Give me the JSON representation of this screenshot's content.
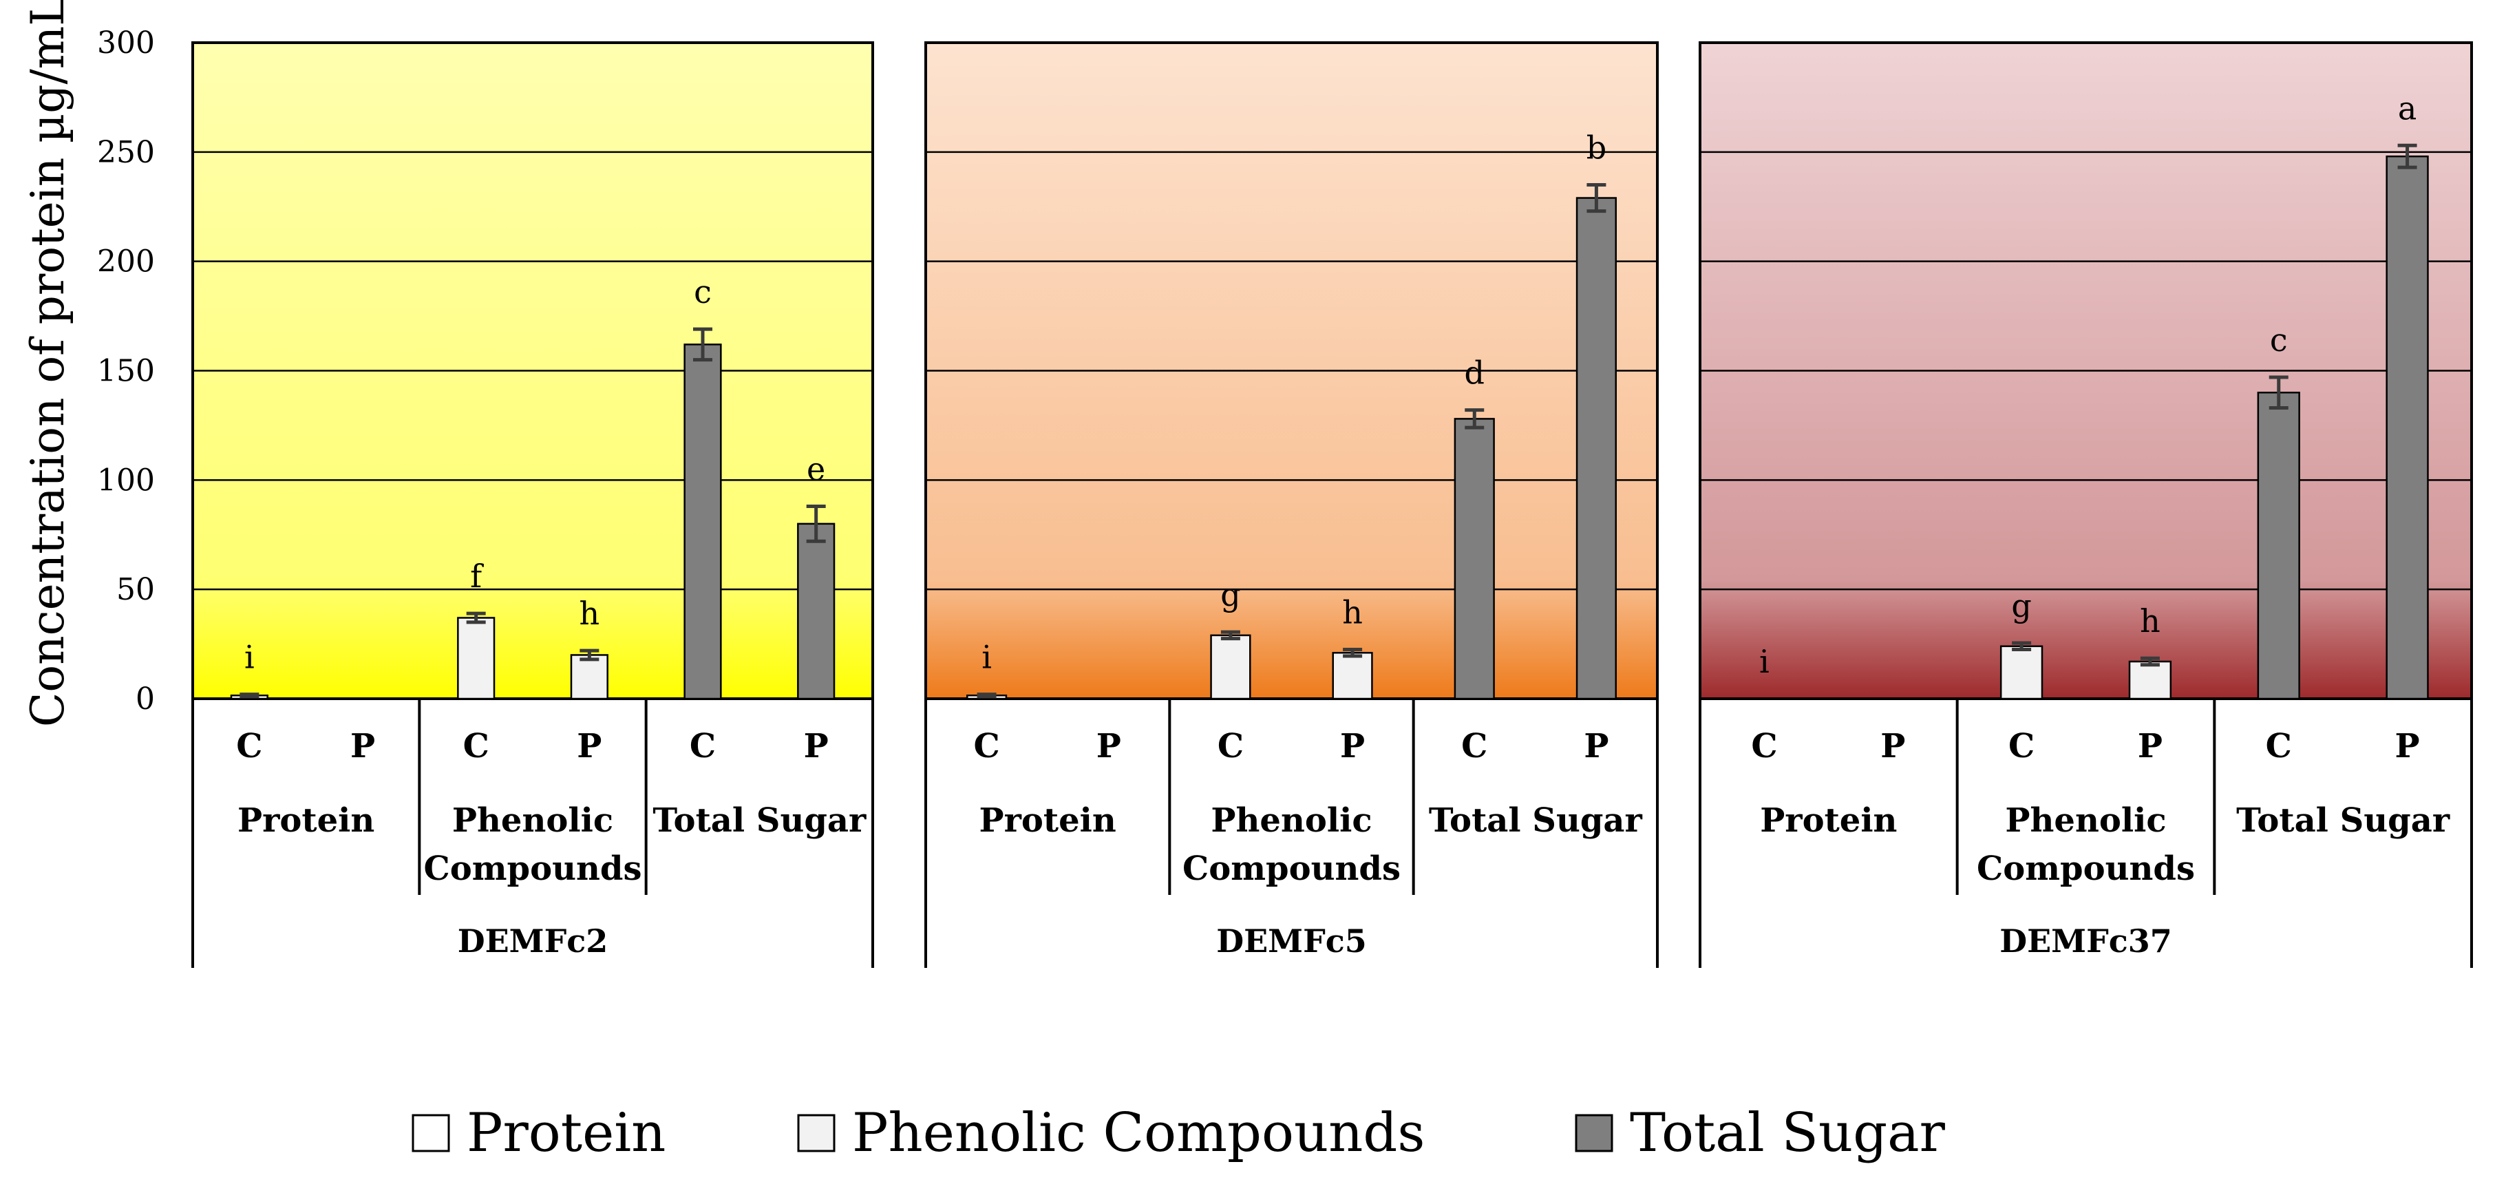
{
  "chart_data": {
    "type": "bar",
    "ylabel": "Concentration of protein µg/mL",
    "ylim": [
      0,
      300
    ],
    "yticks": [
      0,
      50,
      100,
      150,
      200,
      250,
      300
    ],
    "grid": true,
    "legend_position": "bottom",
    "legend": [
      {
        "name": "Protein",
        "color": "#ffffff"
      },
      {
        "name": "Phenolic Compounds",
        "color": "#f2f2f2"
      },
      {
        "name": "Total Sugar",
        "color": "#7f7f7f"
      }
    ],
    "bar_colors": {
      "Protein": "#ffffff",
      "Phenolic Compounds": "#f2f2f2",
      "Total Sugar": "#7f7f7f"
    },
    "panels": [
      {
        "strain": "DEMFc2",
        "bg_top": "#ffffb0",
        "bg_bottom": "#ffff00",
        "groups": [
          {
            "name": "Protein",
            "bars": [
              {
                "cp": "C",
                "value": 1.5,
                "err": 0.5,
                "sig": "i"
              },
              {
                "cp": "P",
                "value": 0,
                "err": 0,
                "sig": ""
              }
            ]
          },
          {
            "name": "Phenolic Compounds",
            "bars": [
              {
                "cp": "C",
                "value": 37,
                "err": 2,
                "sig": "f"
              },
              {
                "cp": "P",
                "value": 20,
                "err": 2,
                "sig": "h"
              }
            ]
          },
          {
            "name": "Total Sugar",
            "bars": [
              {
                "cp": "C",
                "value": 162,
                "err": 7,
                "sig": "c"
              },
              {
                "cp": "P",
                "value": 80,
                "err": 8,
                "sig": "e"
              }
            ]
          }
        ]
      },
      {
        "strain": "DEMFc5",
        "bg_top": "#fde3d0",
        "bg_bottom": "#ee7a1a",
        "groups": [
          {
            "name": "Protein",
            "bars": [
              {
                "cp": "C",
                "value": 1.5,
                "err": 0.5,
                "sig": "i"
              },
              {
                "cp": "P",
                "value": 0,
                "err": 0,
                "sig": ""
              }
            ]
          },
          {
            "name": "Phenolic Compounds",
            "bars": [
              {
                "cp": "C",
                "value": 29,
                "err": 1.5,
                "sig": "g"
              },
              {
                "cp": "P",
                "value": 21,
                "err": 1.5,
                "sig": "h"
              }
            ]
          },
          {
            "name": "Total Sugar",
            "bars": [
              {
                "cp": "C",
                "value": 128,
                "err": 4,
                "sig": "d"
              },
              {
                "cp": "P",
                "value": 229,
                "err": 6,
                "sig": "b"
              }
            ]
          }
        ]
      },
      {
        "strain": "DEMFc37",
        "bg_top": "#efd3d5",
        "bg_bottom": "#9e2a2c",
        "groups": [
          {
            "name": "Protein",
            "bars": [
              {
                "cp": "C",
                "value": 0,
                "err": 0,
                "sig": "i"
              },
              {
                "cp": "P",
                "value": 0,
                "err": 0,
                "sig": ""
              }
            ]
          },
          {
            "name": "Phenolic Compounds",
            "bars": [
              {
                "cp": "C",
                "value": 24,
                "err": 1.5,
                "sig": "g"
              },
              {
                "cp": "P",
                "value": 17,
                "err": 1.5,
                "sig": "h"
              }
            ]
          },
          {
            "name": "Total Sugar",
            "bars": [
              {
                "cp": "C",
                "value": 140,
                "err": 7,
                "sig": "c"
              },
              {
                "cp": "P",
                "value": 248,
                "err": 5,
                "sig": "a"
              }
            ]
          }
        ]
      }
    ]
  }
}
